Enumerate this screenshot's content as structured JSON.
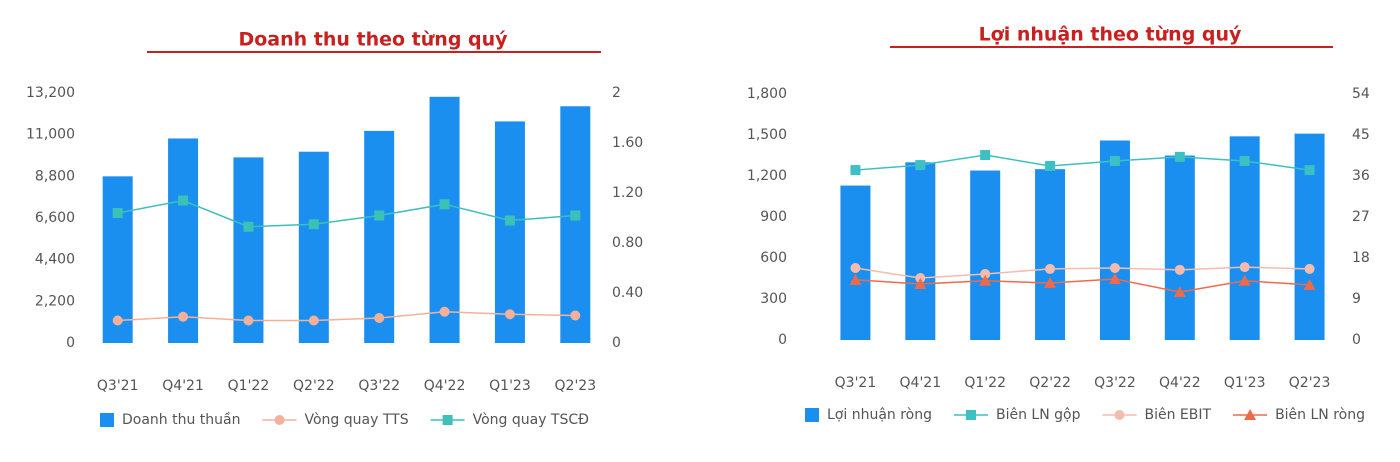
{
  "chart_data": [
    {
      "type": "bar",
      "title": "Doanh thu theo từng quý",
      "categories": [
        "Q3'21",
        "Q4'21",
        "Q1'22",
        "Q2'22",
        "Q3'22",
        "Q4'22",
        "Q1'23",
        "Q2'23"
      ],
      "series": [
        {
          "name": "Doanh thu thuần",
          "type": "bar",
          "color": "#1b8ff0",
          "values": [
            8800,
            10800,
            9800,
            10100,
            11200,
            13000,
            11700,
            12500
          ]
        },
        {
          "name": "Vòng quay TTS",
          "type": "line",
          "marker": "circle",
          "axis": "y2",
          "color": "#f5b09a",
          "values": [
            0.18,
            0.21,
            0.18,
            0.18,
            0.2,
            0.25,
            0.23,
            0.22
          ]
        },
        {
          "name": "Vòng quay TSCĐ",
          "type": "line",
          "marker": "square",
          "axis": "y2",
          "color": "#3cc0b8",
          "values": [
            1.04,
            1.14,
            0.93,
            0.95,
            1.02,
            1.11,
            0.98,
            1.02
          ]
        }
      ],
      "ylim": [
        0,
        13200
      ],
      "yticks": [
        0,
        {
          "value": 2200,
          "label": "2,200"
        },
        {
          "value": 4400,
          "label": "4,400"
        },
        {
          "value": 6600,
          "label": "6,600"
        },
        {
          "value": 8800,
          "label": "8,800"
        },
        {
          "value": 11000,
          "label": "11,000"
        },
        {
          "value": 13200,
          "label": "13,200"
        }
      ],
      "y2lim": [
        0,
        2
      ],
      "y2ticks": [
        0,
        {
          "value": 0.4,
          "label": "0.40"
        },
        {
          "value": 0.8,
          "label": "0.80"
        },
        {
          "value": 1.2,
          "label": "1.20"
        },
        {
          "value": 1.6,
          "label": "1.60"
        },
        2
      ]
    },
    {
      "type": "bar",
      "title": "Lợi nhuận theo từng quý",
      "categories": [
        "Q3'21",
        "Q4'21",
        "Q1'22",
        "Q2'22",
        "Q3'22",
        "Q4'22",
        "Q1'23",
        "Q2'23"
      ],
      "series": [
        {
          "name": "Lợi nhuận ròng",
          "type": "bar",
          "color": "#1b8ff0",
          "values": [
            1130,
            1300,
            1240,
            1250,
            1460,
            1350,
            1490,
            1510
          ]
        },
        {
          "name": "Biên LN gộp",
          "type": "line",
          "marker": "square",
          "axis": "y2",
          "color": "#3cc0c4",
          "values": [
            37.3,
            38.4,
            40.6,
            38.2,
            39.3,
            40.2,
            39.3,
            37.3
          ]
        },
        {
          "name": "Biên EBIT",
          "type": "line",
          "marker": "circle",
          "axis": "y2",
          "color": "#f5bcae",
          "values": [
            15.8,
            13.6,
            14.5,
            15.6,
            15.8,
            15.4,
            16,
            15.6
          ]
        },
        {
          "name": "Biên LN ròng",
          "type": "line",
          "marker": "triangle",
          "axis": "y2",
          "color": "#ee6a4c",
          "values": [
            13.2,
            12.3,
            13,
            12.5,
            13.4,
            10.5,
            13,
            12.1
          ]
        }
      ],
      "ylim": [
        0,
        1800
      ],
      "yticks": [
        0,
        300,
        600,
        900,
        {
          "value": 1200,
          "label": "1,200"
        },
        {
          "value": 1500,
          "label": "1,500"
        },
        {
          "value": 1800,
          "label": "1,800"
        }
      ],
      "y2lim": [
        0,
        54
      ],
      "y2ticks": [
        0,
        9,
        18,
        27,
        36,
        45,
        54
      ]
    }
  ]
}
